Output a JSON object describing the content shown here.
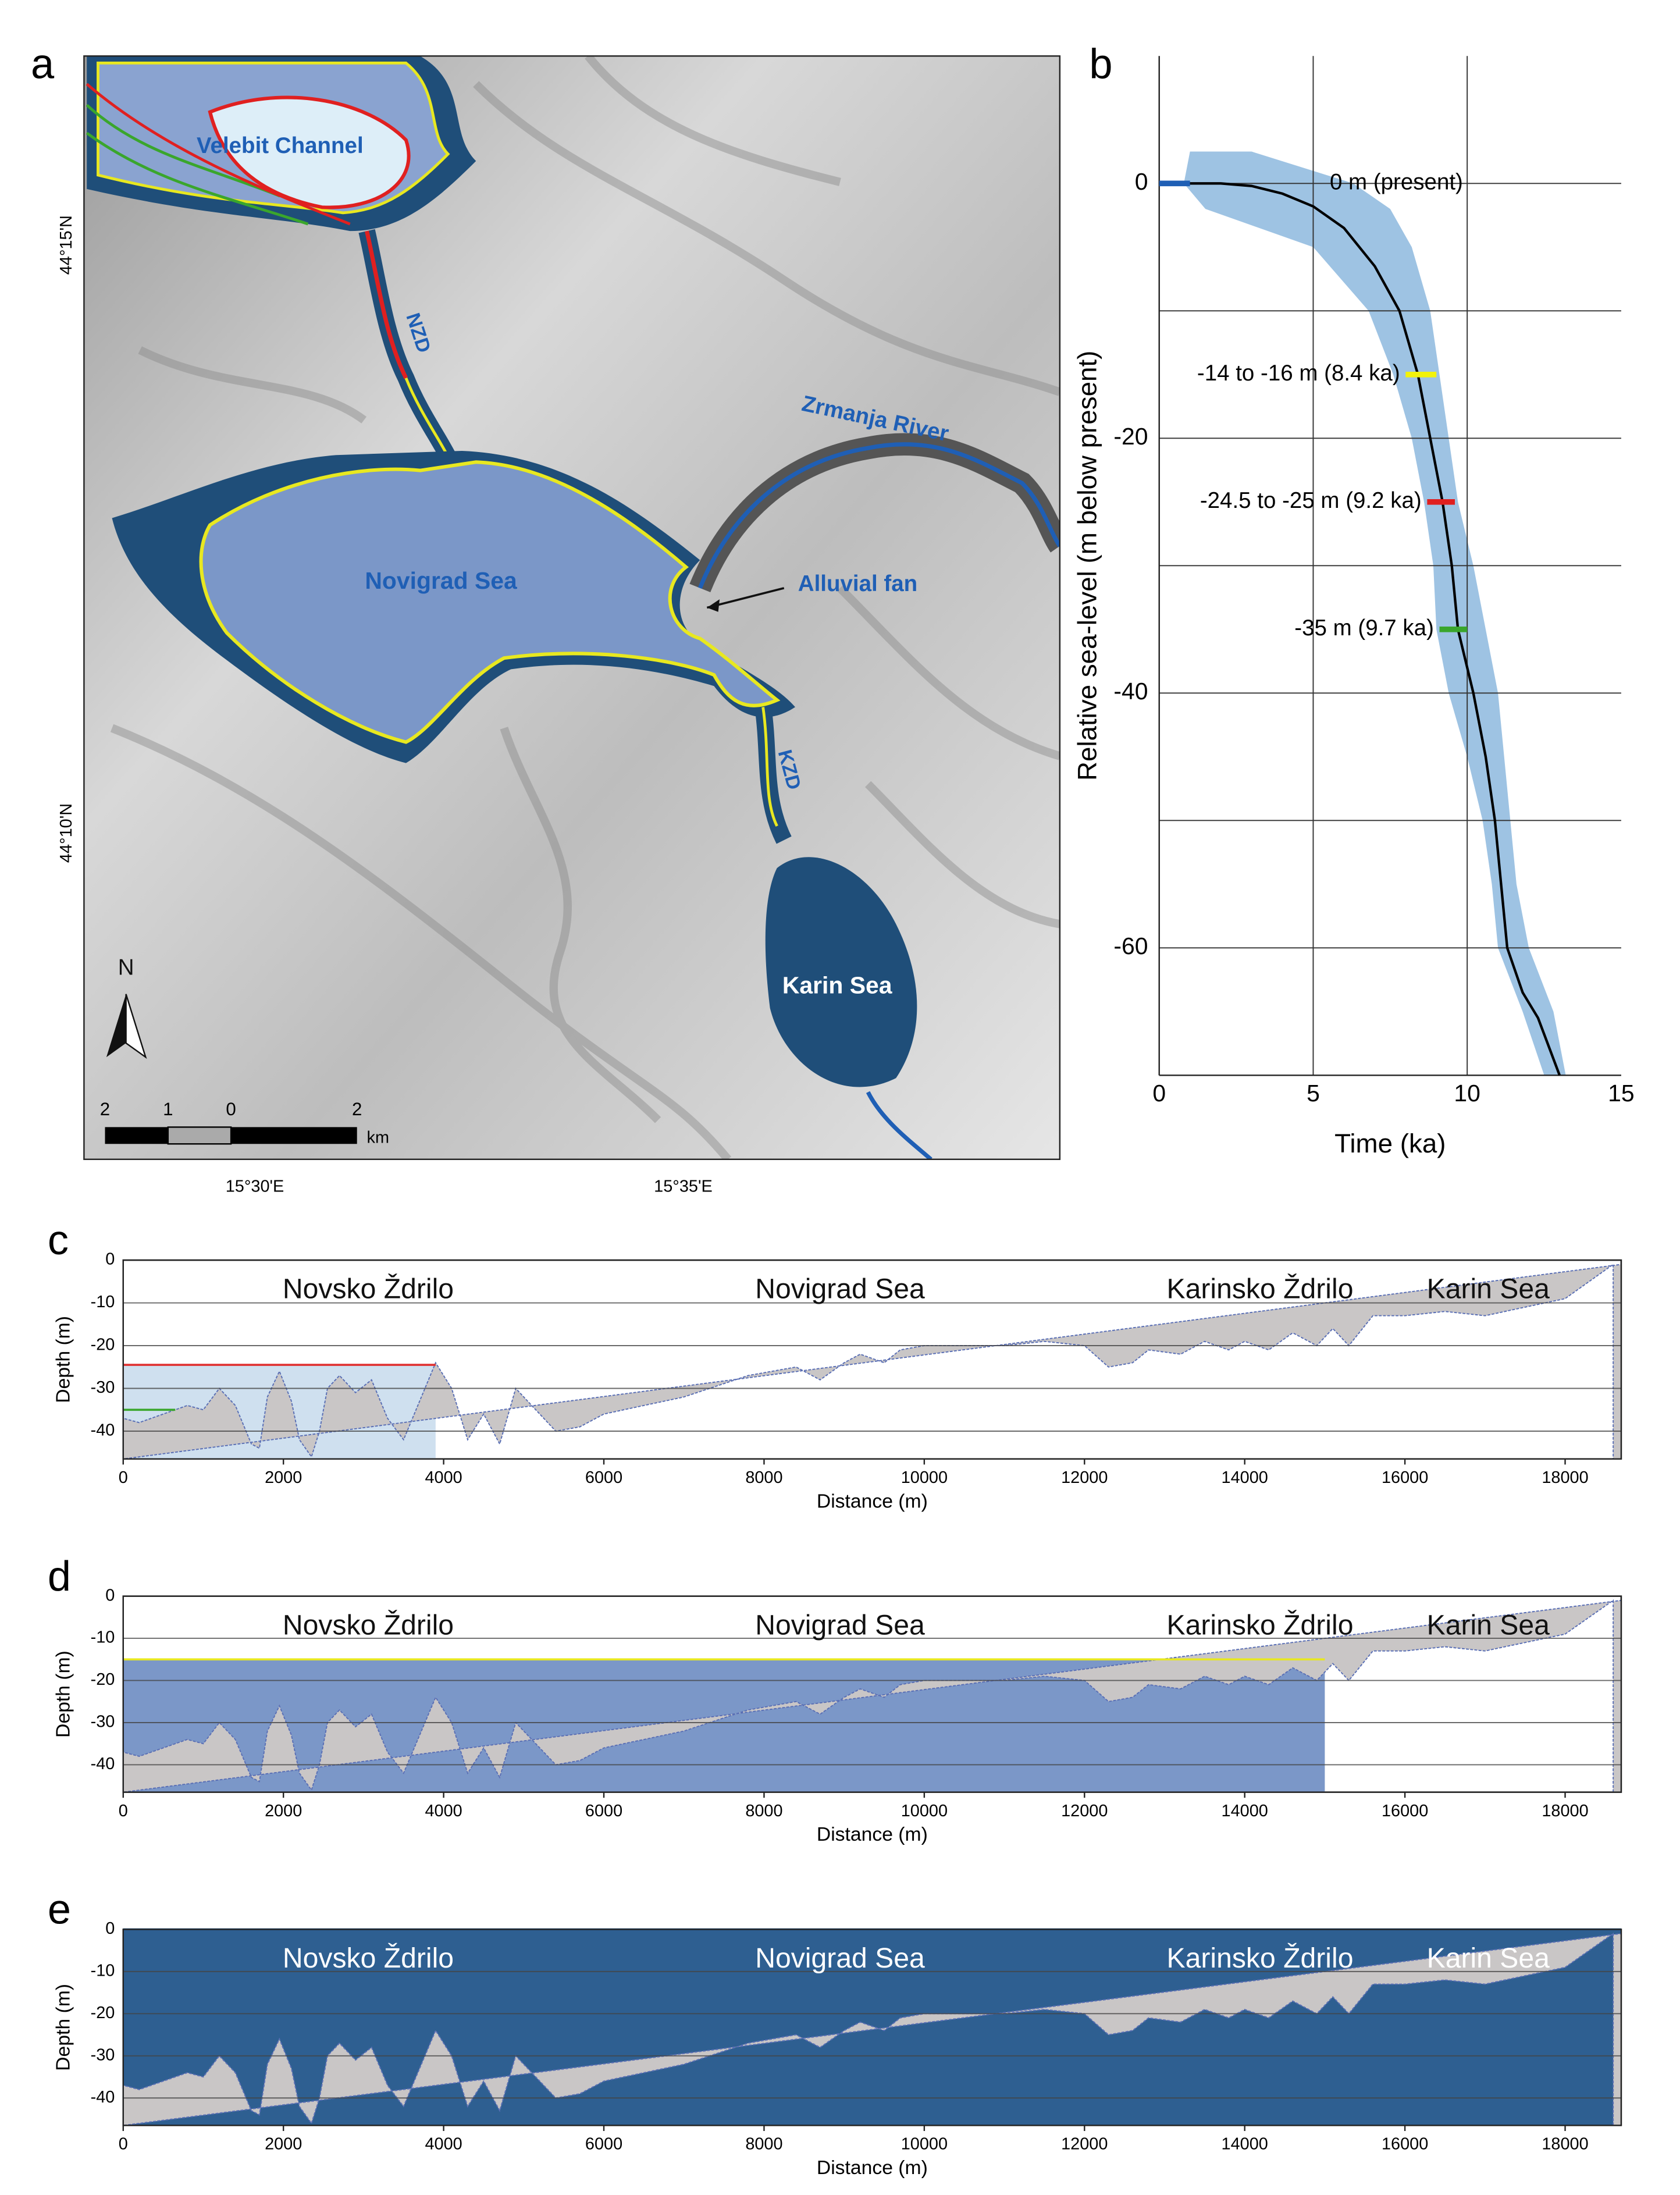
{
  "map": {
    "panel_label": "a",
    "labels": {
      "velebit": "Velebit Channel",
      "nzd": "NZD",
      "zrmanja": "Zrmanja River",
      "novigrad": "Novigrad Sea",
      "fan": "Alluvial fan",
      "kzd": "KZD",
      "karin": "Karin Sea"
    },
    "north": "N",
    "scale": [
      "2",
      "1",
      "0",
      "2"
    ],
    "scale_unit": "km",
    "lat_labels": [
      "44°15'N",
      "44°10'N"
    ],
    "lon_labels": [
      "15°30'E",
      "15°35'E"
    ]
  },
  "chart_data": [
    {
      "type": "line",
      "panel_label": "b",
      "xlabel": "Time (ka)",
      "ylabel": "Relative sea-level (m below present)",
      "xlim": [
        0,
        15
      ],
      "ylim": [
        -70,
        10
      ],
      "xticks": [
        0,
        5,
        10,
        15
      ],
      "yticks": [
        0,
        -20,
        -40,
        -60
      ],
      "minor_yticks": [
        -10,
        -30,
        -50
      ],
      "grid": true,
      "x": [
        0,
        1,
        2,
        3,
        4,
        5,
        6,
        7,
        7.8,
        8.4,
        8.8,
        9.2,
        9.5,
        9.7,
        10.2,
        10.6,
        10.9,
        11.1,
        11.3,
        11.8,
        12.3,
        13
      ],
      "values": [
        0,
        0,
        0,
        -0.2,
        -0.8,
        -1.8,
        -3.5,
        -6.5,
        -10,
        -15,
        -20,
        -25,
        -30,
        -35,
        -40,
        -45,
        -50,
        -55,
        -60,
        -63.5,
        -65.5,
        -70
      ],
      "color": "#000000",
      "band": {
        "color": "#9ec3e3",
        "y": [
          2.5,
          0,
          -2,
          -5,
          -10,
          -15,
          -20,
          -25,
          -30,
          -35,
          -40,
          -45,
          -50,
          -55,
          -60,
          -65,
          -70
        ],
        "x_min": [
          1.0,
          0.8,
          1.5,
          5.0,
          6.8,
          7.6,
          8.2,
          8.6,
          8.9,
          9.0,
          9.4,
          10.0,
          10.5,
          10.8,
          11.0,
          11.8,
          12.5
        ],
        "x_max": [
          3.0,
          6.3,
          7.5,
          8.2,
          8.8,
          9.1,
          9.4,
          9.7,
          10.2,
          10.6,
          11.0,
          11.2,
          11.4,
          11.6,
          12.0,
          12.8,
          13.2
        ]
      },
      "markers": [
        {
          "label": "0 m (present)",
          "y": 0,
          "x": [
            0,
            1
          ],
          "color": "#1f5fb5"
        },
        {
          "label": "-14 to -16 m (8.4 ka)",
          "y": -15,
          "x": [
            8,
            9
          ],
          "color": "#f2f20a"
        },
        {
          "label": "-24.5 to -25 m (9.2 ka)",
          "y": -25,
          "x": [
            8.7,
            9.6
          ],
          "color": "#e02020"
        },
        {
          "label": "-35 m (9.7 ka)",
          "y": -35,
          "x": [
            9.1,
            10
          ],
          "color": "#3aa62c"
        }
      ]
    },
    {
      "type": "area",
      "panel_label": "c",
      "xlabel": "Distance (m)",
      "ylabel": "Depth (m)",
      "xlim": [
        0,
        18700
      ],
      "ylim": [
        -46.5,
        0
      ],
      "xticks": [
        0,
        2000,
        4000,
        6000,
        8000,
        10000,
        12000,
        14000,
        16000,
        18000
      ],
      "yticks": [
        0,
        -10,
        -20,
        -30,
        -40
      ],
      "annotations": [
        "Novsko Ždrilo",
        "Novigrad Sea",
        "Karinsko Ždrilo",
        "Karin Sea"
      ],
      "annotation_color": "#111111",
      "color": "#c9c6c6",
      "x": [
        0,
        200,
        500,
        800,
        1000,
        1200,
        1400,
        1600,
        1700,
        1800,
        1950,
        2100,
        2200,
        2350,
        2450,
        2550,
        2700,
        2900,
        3100,
        3300,
        3500,
        3700,
        3900,
        4100,
        4300,
        4500,
        4700,
        4900,
        5100,
        5400,
        5700,
        6000,
        7000,
        7800,
        8400,
        8700,
        9000,
        9200,
        9500,
        9700,
        10000,
        11000,
        11500,
        12000,
        12300,
        12600,
        12800,
        13200,
        13500,
        13800,
        14000,
        14300,
        14600,
        14900,
        15100,
        15300,
        15600,
        16000,
        16500,
        17000,
        17500,
        18000,
        18300,
        18600
      ],
      "values": [
        -37,
        -38,
        -36,
        -34,
        -35,
        -30,
        -34,
        -43,
        -44,
        -32,
        -26,
        -33,
        -42,
        -46,
        -40,
        -30,
        -27,
        -31,
        -28,
        -37,
        -42,
        -33,
        -24,
        -30,
        -42,
        -36,
        -43,
        -30,
        -34,
        -40,
        -39,
        -36,
        -32,
        -27,
        -25,
        -28,
        -24,
        -22,
        -24,
        -21,
        -20,
        -20,
        -19,
        -20,
        -25,
        -24,
        -21,
        -22,
        -19,
        -21,
        -19,
        -21,
        -17,
        -20,
        -16,
        -20,
        -13,
        -13,
        -12,
        -13,
        -11,
        -9,
        -5,
        -1
      ],
      "levels": [
        {
          "y": -24.5,
          "x": [
            0,
            3900
          ],
          "fill": "#cfe0ef",
          "color": "#e03030"
        },
        {
          "y": -35,
          "x": [
            0,
            650
          ],
          "color": "#3aa62c"
        }
      ]
    },
    {
      "type": "area",
      "panel_label": "d",
      "xlabel": "Distance (m)",
      "ylabel": "Depth (m)",
      "xlim": [
        0,
        18700
      ],
      "ylim": [
        -46.5,
        0
      ],
      "xticks": [
        0,
        2000,
        4000,
        6000,
        8000,
        10000,
        12000,
        14000,
        16000,
        18000
      ],
      "yticks": [
        0,
        -10,
        -20,
        -30,
        -40
      ],
      "annotations": [
        "Novsko Ždrilo",
        "Novigrad Sea",
        "Karinsko Ždrilo",
        "Karin Sea"
      ],
      "annotation_color": "#111111",
      "color": "#c9c6c6",
      "x": [
        0,
        200,
        500,
        800,
        1000,
        1200,
        1400,
        1600,
        1700,
        1800,
        1950,
        2100,
        2200,
        2350,
        2450,
        2550,
        2700,
        2900,
        3100,
        3300,
        3500,
        3700,
        3900,
        4100,
        4300,
        4500,
        4700,
        4900,
        5100,
        5400,
        5700,
        6000,
        7000,
        7800,
        8400,
        8700,
        9000,
        9200,
        9500,
        9700,
        10000,
        11000,
        11500,
        12000,
        12300,
        12600,
        12800,
        13200,
        13500,
        13800,
        14000,
        14300,
        14600,
        14900,
        15100,
        15300,
        15600,
        16000,
        16500,
        17000,
        17500,
        18000,
        18300,
        18600
      ],
      "values": [
        -37,
        -38,
        -36,
        -34,
        -35,
        -30,
        -34,
        -43,
        -44,
        -32,
        -26,
        -33,
        -42,
        -46,
        -40,
        -30,
        -27,
        -31,
        -28,
        -37,
        -42,
        -33,
        -24,
        -30,
        -42,
        -36,
        -43,
        -30,
        -34,
        -40,
        -39,
        -36,
        -32,
        -27,
        -25,
        -28,
        -24,
        -22,
        -24,
        -21,
        -20,
        -20,
        -19,
        -20,
        -25,
        -24,
        -21,
        -22,
        -19,
        -21,
        -19,
        -21,
        -17,
        -20,
        -16,
        -20,
        -13,
        -13,
        -12,
        -13,
        -11,
        -9,
        -5,
        -1
      ],
      "levels": [
        {
          "y": -15,
          "x": [
            0,
            15000
          ],
          "fill": "#7b97c8",
          "color": "#e8e820"
        }
      ]
    },
    {
      "type": "area",
      "panel_label": "e",
      "xlabel": "Distance (m)",
      "ylabel": "Depth (m)",
      "xlim": [
        0,
        18700
      ],
      "ylim": [
        -46.5,
        0
      ],
      "xticks": [
        0,
        2000,
        4000,
        6000,
        8000,
        10000,
        12000,
        14000,
        16000,
        18000
      ],
      "yticks": [
        0,
        -10,
        -20,
        -30,
        -40
      ],
      "annotations": [
        "Novsko Ždrilo",
        "Novigrad Sea",
        "Karinsko Ždrilo",
        "Karin Sea"
      ],
      "annotation_color": "#ffffff",
      "color": "#c9c6c6",
      "x": [
        0,
        200,
        500,
        800,
        1000,
        1200,
        1400,
        1600,
        1700,
        1800,
        1950,
        2100,
        2200,
        2350,
        2450,
        2550,
        2700,
        2900,
        3100,
        3300,
        3500,
        3700,
        3900,
        4100,
        4300,
        4500,
        4700,
        4900,
        5100,
        5400,
        5700,
        6000,
        7000,
        7800,
        8400,
        8700,
        9000,
        9200,
        9500,
        9700,
        10000,
        11000,
        11500,
        12000,
        12300,
        12600,
        12800,
        13200,
        13500,
        13800,
        14000,
        14300,
        14600,
        14900,
        15100,
        15300,
        15600,
        16000,
        16500,
        17000,
        17500,
        18000,
        18300,
        18600
      ],
      "values": [
        -37,
        -38,
        -36,
        -34,
        -35,
        -30,
        -34,
        -43,
        -44,
        -32,
        -26,
        -33,
        -42,
        -46,
        -40,
        -30,
        -27,
        -31,
        -28,
        -37,
        -42,
        -33,
        -24,
        -30,
        -42,
        -36,
        -43,
        -30,
        -34,
        -40,
        -39,
        -36,
        -32,
        -27,
        -25,
        -28,
        -24,
        -22,
        -24,
        -21,
        -20,
        -20,
        -19,
        -20,
        -25,
        -24,
        -21,
        -22,
        -19,
        -21,
        -19,
        -21,
        -17,
        -20,
        -16,
        -20,
        -13,
        -13,
        -12,
        -13,
        -11,
        -9,
        -5,
        -1
      ],
      "levels": [
        {
          "y": 0,
          "x": [
            0,
            18700
          ],
          "fill": "#2e5f91",
          "color": "#2e5f91"
        }
      ]
    }
  ]
}
